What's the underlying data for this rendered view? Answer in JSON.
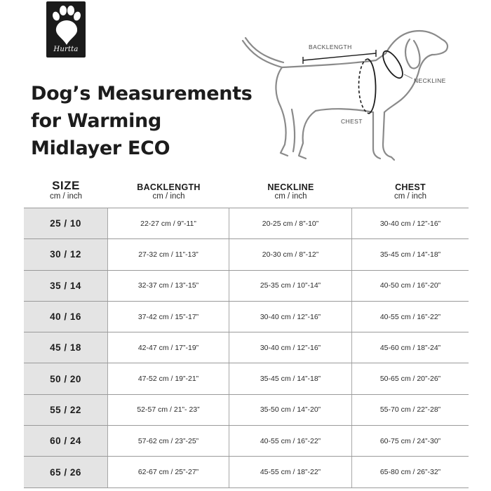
{
  "logo": {
    "word": "Hurtta",
    "icon": "paw-print-icon"
  },
  "title": {
    "line1": "Dog’s Measurements",
    "line2": "for Warming",
    "line3": "Midlayer ECO"
  },
  "illustration": {
    "icon": "dog-outline-icon",
    "labels": {
      "backlength": "BACKLENGTH",
      "neckline": "NECKLINE",
      "chest": "CHEST"
    }
  },
  "table": {
    "headers": [
      {
        "label": "SIZE",
        "unit": "cm / inch"
      },
      {
        "label": "BACKLENGTH",
        "unit": "cm / inch"
      },
      {
        "label": "NECKLINE",
        "unit": "cm / inch"
      },
      {
        "label": "CHEST",
        "unit": "cm / inch"
      }
    ],
    "rows": [
      {
        "size": "25 / 10",
        "backlength": "22-27 cm / 9”-11”",
        "neckline": "20-25 cm / 8”-10”",
        "chest": "30-40 cm / 12”-16”"
      },
      {
        "size": "30 / 12",
        "backlength": "27-32 cm / 11”-13”",
        "neckline": "20-30 cm / 8”-12”",
        "chest": "35-45 cm / 14”-18”"
      },
      {
        "size": "35 / 14",
        "backlength": "32-37 cm / 13”-15”",
        "neckline": "25-35 cm / 10”-14”",
        "chest": "40-50 cm / 16”-20”"
      },
      {
        "size": "40 / 16",
        "backlength": "37-42 cm / 15”-17”",
        "neckline": "30-40 cm / 12”-16”",
        "chest": "40-55 cm / 16”-22”"
      },
      {
        "size": "45 / 18",
        "backlength": "42-47 cm / 17”-19”",
        "neckline": "30-40 cm / 12”-16”",
        "chest": "45-60 cm / 18”-24”"
      },
      {
        "size": "50 / 20",
        "backlength": "47-52 cm / 19”-21”",
        "neckline": "35-45 cm / 14”-18”",
        "chest": "50-65 cm / 20”-26”"
      },
      {
        "size": "55 / 22",
        "backlength": "52-57 cm / 21”- 23”",
        "neckline": "35-50 cm / 14”-20”",
        "chest": "55-70 cm / 22”-28”"
      },
      {
        "size": "60 / 24",
        "backlength": "57-62 cm / 23”-25”",
        "neckline": "40-55 cm / 16”-22”",
        "chest": "60-75 cm / 24”-30”"
      },
      {
        "size": "65 / 26",
        "backlength": "62-67 cm / 25”-27”",
        "neckline": "45-55 cm / 18”-22”",
        "chest": "65-80 cm / 26”-32”"
      }
    ]
  },
  "colors": {
    "size_column_bg": "#e4e4e4",
    "rule": "#9a9a9a",
    "logo_bg": "#1b1b1b"
  }
}
